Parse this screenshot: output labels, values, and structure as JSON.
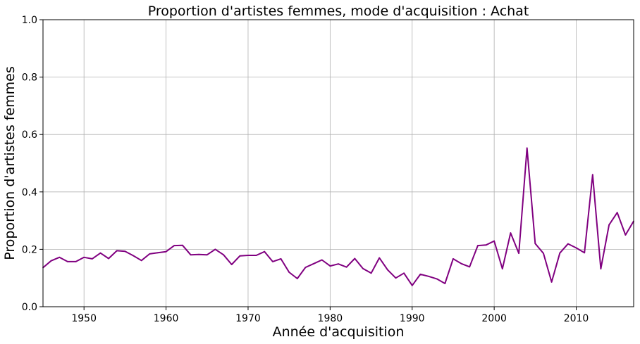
{
  "chart_data": {
    "type": "line",
    "title": "Proportion d'artistes femmes, mode d'acquisition : Achat",
    "xlabel": "Année d'acquisition",
    "ylabel": "Proportion d'artistes femmes",
    "xlim": [
      1945,
      2017
    ],
    "ylim": [
      0,
      1.0
    ],
    "xticks": [
      1950,
      1960,
      1970,
      1980,
      1990,
      2000,
      2010
    ],
    "yticks": [
      0.0,
      0.2,
      0.4,
      0.6,
      0.8,
      1.0
    ],
    "ytick_labels": [
      "0.0",
      "0.2",
      "0.4",
      "0.6",
      "0.8",
      "1.0"
    ],
    "grid": true,
    "line_color": "#800080",
    "series": [
      {
        "x": [
          1945,
          1946,
          1947,
          1948,
          1949,
          1950,
          1951,
          1952,
          1953,
          1954,
          1955,
          1956,
          1957,
          1958,
          1959,
          1960,
          1961,
          1962,
          1963,
          1964,
          1965,
          1966,
          1967,
          1968,
          1969,
          1970,
          1971,
          1972,
          1973,
          1974,
          1975,
          1976,
          1977,
          1978,
          1979,
          1980,
          1981,
          1982,
          1983,
          1984,
          1985,
          1986,
          1987,
          1988,
          1989,
          1990,
          1991,
          1992,
          1993,
          1994,
          1995,
          1996,
          1997,
          1998,
          1999,
          2000,
          2001,
          2002,
          2003,
          2004,
          2005,
          2006,
          2007,
          2008,
          2009,
          2010,
          2011,
          2012,
          2013,
          2014,
          2015,
          2016,
          2017
        ],
        "values": [
          0.136,
          0.16,
          0.172,
          0.157,
          0.157,
          0.172,
          0.167,
          0.187,
          0.168,
          0.195,
          0.193,
          0.178,
          0.161,
          0.184,
          0.188,
          0.192,
          0.213,
          0.214,
          0.181,
          0.182,
          0.181,
          0.2,
          0.181,
          0.147,
          0.177,
          0.179,
          0.179,
          0.192,
          0.157,
          0.167,
          0.12,
          0.098,
          0.137,
          0.15,
          0.163,
          0.142,
          0.149,
          0.138,
          0.168,
          0.133,
          0.117,
          0.17,
          0.129,
          0.1,
          0.117,
          0.074,
          0.113,
          0.106,
          0.097,
          0.081,
          0.167,
          0.15,
          0.139,
          0.213,
          0.215,
          0.229,
          0.132,
          0.257,
          0.186,
          0.553,
          0.22,
          0.186,
          0.086,
          0.187,
          0.219,
          0.205,
          0.188,
          0.46,
          0.132,
          0.285,
          0.328,
          0.25,
          0.298
        ]
      }
    ]
  }
}
